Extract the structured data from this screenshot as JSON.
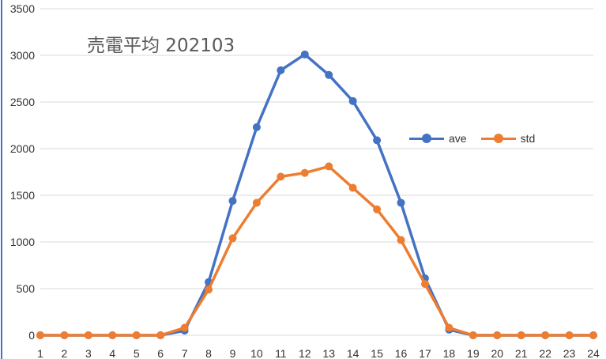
{
  "chart_data": {
    "type": "line",
    "title": "売電平均 202103",
    "xlabel": "",
    "ylabel": "",
    "categories": [
      "1",
      "2",
      "3",
      "4",
      "5",
      "6",
      "7",
      "8",
      "9",
      "10",
      "11",
      "12",
      "13",
      "14",
      "15",
      "16",
      "17",
      "18",
      "19",
      "20",
      "21",
      "22",
      "23",
      "24"
    ],
    "ylim": [
      0,
      3500
    ],
    "yticks": [
      "0",
      "500",
      "1000",
      "1500",
      "2000",
      "2500",
      "3000",
      "3500"
    ],
    "grid": true,
    "legend_position": "right-center",
    "series": [
      {
        "name": "ave",
        "color": "#4472C4",
        "values": [
          0,
          0,
          0,
          0,
          0,
          0,
          50,
          570,
          1440,
          2230,
          2840,
          3010,
          2790,
          2510,
          2090,
          1420,
          610,
          60,
          0,
          0,
          0,
          0,
          0,
          0
        ]
      },
      {
        "name": "std",
        "color": "#ED7D31",
        "values": [
          0,
          0,
          0,
          0,
          0,
          0,
          80,
          490,
          1040,
          1420,
          1700,
          1740,
          1810,
          1580,
          1350,
          1020,
          550,
          80,
          0,
          0,
          0,
          0,
          0,
          0
        ]
      }
    ]
  }
}
